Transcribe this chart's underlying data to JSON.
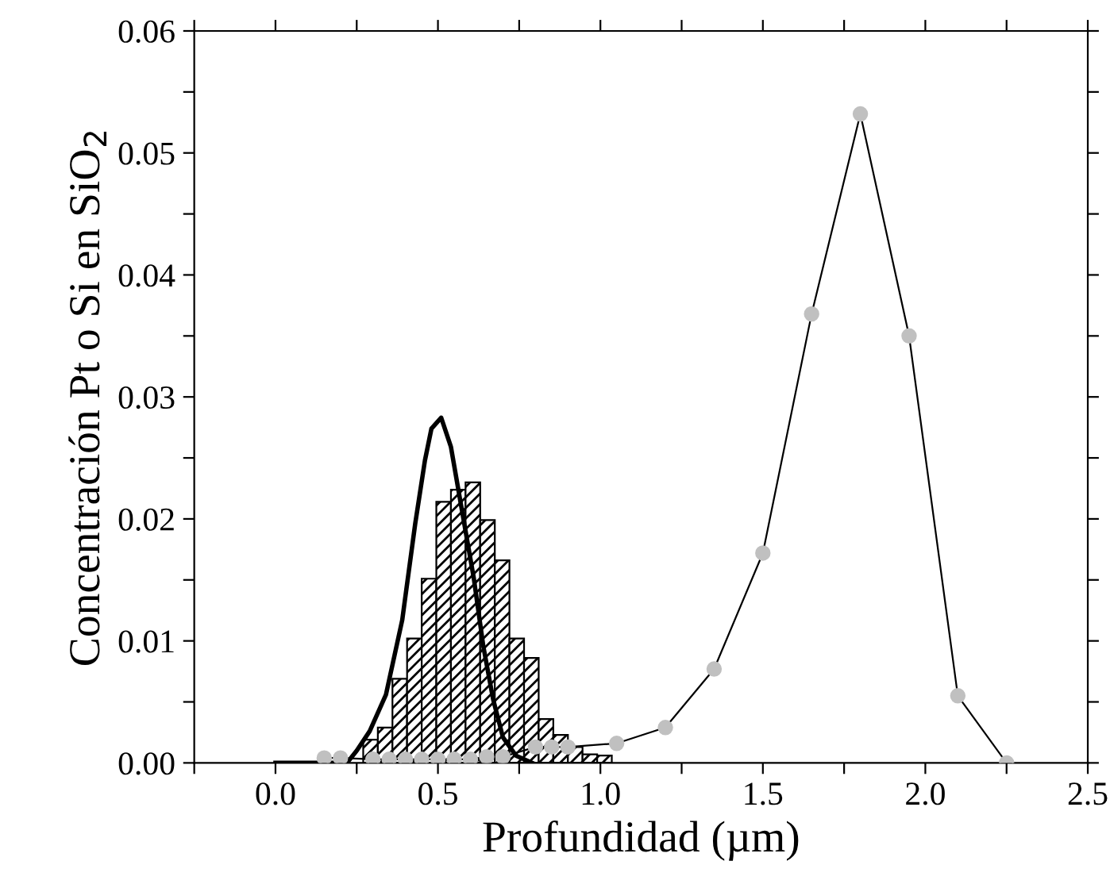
{
  "chart_data": {
    "type": "line",
    "xlabel": "Profundidad (µm)",
    "ylabel": "Concentración Pt o Si en SiO$_{2}$",
    "xlim": [
      -0.25,
      2.5
    ],
    "ylim": [
      0,
      0.06
    ],
    "xticks": [
      {
        "value": -0.25,
        "label": null
      },
      {
        "value": 0,
        "label": "0.0"
      },
      {
        "value": 0.25,
        "label": null
      },
      0.5,
      {
        "value": 0.75,
        "label": null
      },
      {
        "value": 1,
        "label": "1.0"
      },
      {
        "value": 1.25,
        "label": null
      },
      1.5,
      {
        "value": 1.75,
        "label": null
      },
      {
        "value": 2,
        "label": "2.0"
      },
      {
        "value": 2.25,
        "label": null
      },
      2.5
    ],
    "yticks": [
      {
        "value": 0,
        "label": "0.00"
      },
      {
        "value": 0.005,
        "label": null
      },
      0.01,
      {
        "value": 0.015,
        "label": null
      },
      0.02,
      {
        "value": 0.025,
        "label": null
      },
      0.03,
      {
        "value": 0.035,
        "label": null
      },
      0.04,
      {
        "value": 0.045,
        "label": null
      },
      0.05,
      {
        "value": 0.055,
        "label": null
      },
      0.06
    ],
    "grid": false,
    "legend": false,
    "series": [
      {
        "type": "histogram",
        "color": "#000000",
        "bins": [
          0.27,
          0.315,
          0.36,
          0.405,
          0.45,
          0.495,
          0.54,
          0.585,
          0.63,
          0.675,
          0.72,
          0.765,
          0.81,
          0.855,
          0.9,
          0.945,
          0.99,
          1.035
        ],
        "values": [
          0.0019,
          0.0029,
          0.0069,
          0.0102,
          0.0151,
          0.0214,
          0.0224,
          0.023,
          0.0199,
          0.0166,
          0.0102,
          0.0086,
          0.0036,
          0.0023,
          0.0013,
          0.0007,
          0.0006
        ]
      },
      {
        "color": "#000000",
        "marker": "none",
        "x": [
          0.0,
          0.22,
          0.25,
          0.29,
          0.34,
          0.39,
          0.43,
          0.46,
          0.48,
          0.51,
          0.54,
          0.57,
          0.61,
          0.64,
          0.67,
          0.7,
          0.74,
          0.79
        ],
        "values": [
          0.0,
          0.0,
          0.001,
          0.0026,
          0.0056,
          0.0117,
          0.0196,
          0.0248,
          0.0274,
          0.0283,
          0.0259,
          0.0213,
          0.0152,
          0.0095,
          0.0052,
          0.0021,
          0.0006,
          0.0
        ]
      },
      {
        "color": "#c0c0c0",
        "marker": "circle",
        "x": [
          0.15,
          0.2,
          0.3,
          0.35,
          0.4,
          0.45,
          0.5,
          0.55,
          0.6,
          0.65,
          0.7,
          0.8,
          0.85,
          0.9,
          1.05,
          1.2,
          1.35,
          1.5,
          1.65,
          1.8,
          1.95,
          2.1,
          2.25
        ],
        "values": [
          0.0004,
          0.0004,
          0.0003,
          0.0003,
          0.0003,
          0.0003,
          0.0003,
          0.0003,
          0.0003,
          0.0005,
          0.0005,
          0.0013,
          0.0013,
          0.0013,
          0.0016,
          0.0029,
          0.0077,
          0.0172,
          0.0368,
          0.0532,
          0.035,
          0.0055,
          0.0
        ]
      }
    ]
  }
}
